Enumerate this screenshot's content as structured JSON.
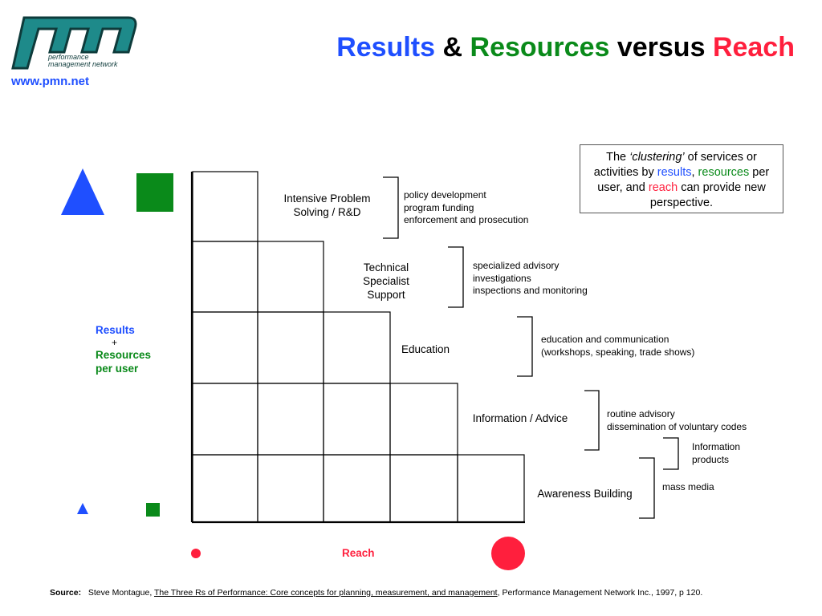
{
  "logo": {
    "mark": "pmn",
    "tagline_line1": "performance",
    "tagline_line2": "management network"
  },
  "website": "www.pmn.net",
  "title": {
    "results": "Results",
    "amp": "&",
    "resources": "Resources",
    "versus": "versus",
    "reach": "Reach"
  },
  "callout": {
    "the": "The",
    "clustering": "‘clustering’",
    "of_services": "of services or activities by",
    "results": "results",
    "comma": ",",
    "resources": "resources",
    "per_user_and": "per user, and",
    "reach": "reach",
    "can_provide": "can provide new perspective."
  },
  "y_axis_label": {
    "results": "Results",
    "plus": "+",
    "resources": "Resources",
    "per_user": "per user"
  },
  "x_axis_label": "Reach",
  "tiers": [
    {
      "name": "Intensive Problem Solving / R&D",
      "activities": [
        "policy development",
        "program funding",
        "enforcement and prosecution"
      ]
    },
    {
      "name": "Technical Specialist Support",
      "activities": [
        "specialized advisory",
        "investigations",
        "inspections and monitoring"
      ]
    },
    {
      "name": "Education",
      "activities": [
        "education and communication",
        "(workshops, speaking, trade shows)"
      ]
    },
    {
      "name": "Information / Advice",
      "activities": [
        "routine advisory",
        "dissemination of voluntary codes"
      ]
    },
    {
      "name": "Awareness Building",
      "activities": [
        "mass media"
      ]
    }
  ],
  "extra_activity": [
    "Information",
    "products"
  ],
  "source": {
    "label": "Source:",
    "author": "Steve Montague,",
    "book": "The Three Rs of Performance:  Core concepts for planning, measurement, and management",
    "rest": ", Performance Management Network Inc., 1997, p 120."
  },
  "colors": {
    "results": "#1f4fff",
    "resources": "#0a8a1a",
    "reach": "#ff1f3d"
  }
}
